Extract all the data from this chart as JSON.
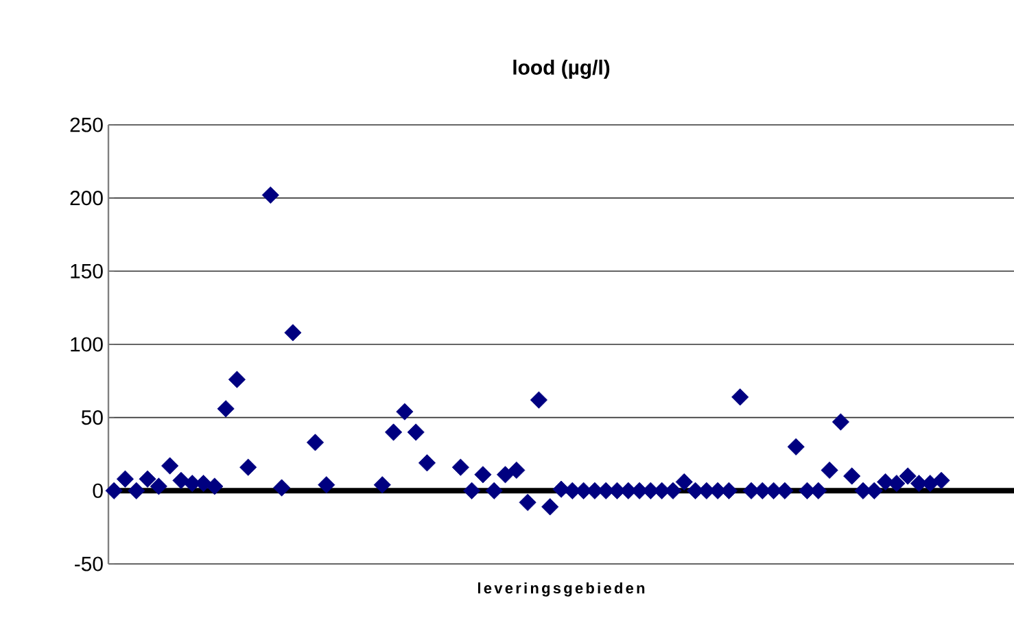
{
  "chart_data": {
    "type": "scatter",
    "title": "lood (µg/l)",
    "xlabel": "leveringsgebieden",
    "categories": [
      null,
      null,
      null,
      null,
      null,
      null,
      null,
      null,
      null,
      null,
      null,
      null,
      null,
      null,
      null,
      null,
      null,
      null,
      null,
      null,
      null,
      null,
      null,
      null,
      null,
      null,
      null,
      null,
      null,
      null,
      null,
      null,
      null,
      null,
      null,
      null,
      null,
      null,
      null,
      null,
      null,
      null,
      null,
      null,
      null,
      null,
      null,
      null,
      null,
      null,
      null,
      null,
      null,
      null,
      null,
      null,
      null,
      null,
      null,
      null,
      null,
      null,
      null,
      null,
      null,
      null,
      null,
      null,
      null,
      null,
      null,
      null,
      null,
      null,
      null,
      null,
      null,
      null,
      null,
      null,
      null
    ],
    "values": [
      0,
      8,
      0,
      8,
      3,
      17,
      7,
      5,
      5,
      3,
      56,
      76,
      16,
      null,
      202,
      2,
      108,
      null,
      33,
      4,
      null,
      null,
      null,
      null,
      4,
      40,
      54,
      40,
      19,
      null,
      null,
      16,
      0,
      11,
      0,
      11,
      14,
      -8,
      62,
      -11,
      1,
      0,
      0,
      0,
      0,
      0,
      0,
      0,
      0,
      0,
      0,
      6,
      0,
      0,
      0,
      0,
      64,
      0,
      0,
      0,
      0,
      30,
      0,
      0,
      14,
      47,
      10,
      0,
      0,
      6,
      5,
      10,
      5,
      5,
      7,
      null,
      null,
      null,
      null,
      null,
      null
    ],
    "color": "#000080",
    "marker": "diamond",
    "ylim": [
      -50,
      250
    ],
    "yticks": [
      -50,
      0,
      50,
      100,
      150,
      200,
      250
    ],
    "grid": "y",
    "tick_labels": "y"
  }
}
